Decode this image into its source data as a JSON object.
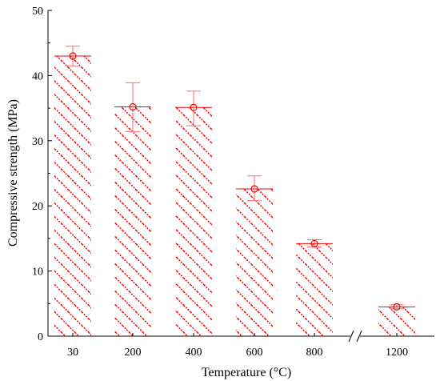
{
  "chart_data": {
    "type": "bar",
    "title": "",
    "xlabel": "Temperature (°C)",
    "ylabel": "Compressive strength (MPa)",
    "categories": [
      "30",
      "200",
      "400",
      "600",
      "800",
      "1200"
    ],
    "values": [
      43.0,
      35.2,
      35.1,
      22.6,
      14.2,
      4.5
    ],
    "error_low": [
      1.5,
      3.8,
      2.8,
      1.8,
      0.5,
      0.3
    ],
    "error_high": [
      1.5,
      3.7,
      2.5,
      2.0,
      0.6,
      0.3
    ],
    "ylim": [
      0,
      50
    ],
    "yticks": [
      0,
      10,
      20,
      30,
      40,
      50
    ],
    "axis_break": "between 800 and 1200",
    "grid": false,
    "legend": "none",
    "colors": {
      "bar_hatch": "#ff0000",
      "bar_edge": "#ff0000",
      "marker": "#ff0000",
      "axis": "#000000"
    }
  }
}
